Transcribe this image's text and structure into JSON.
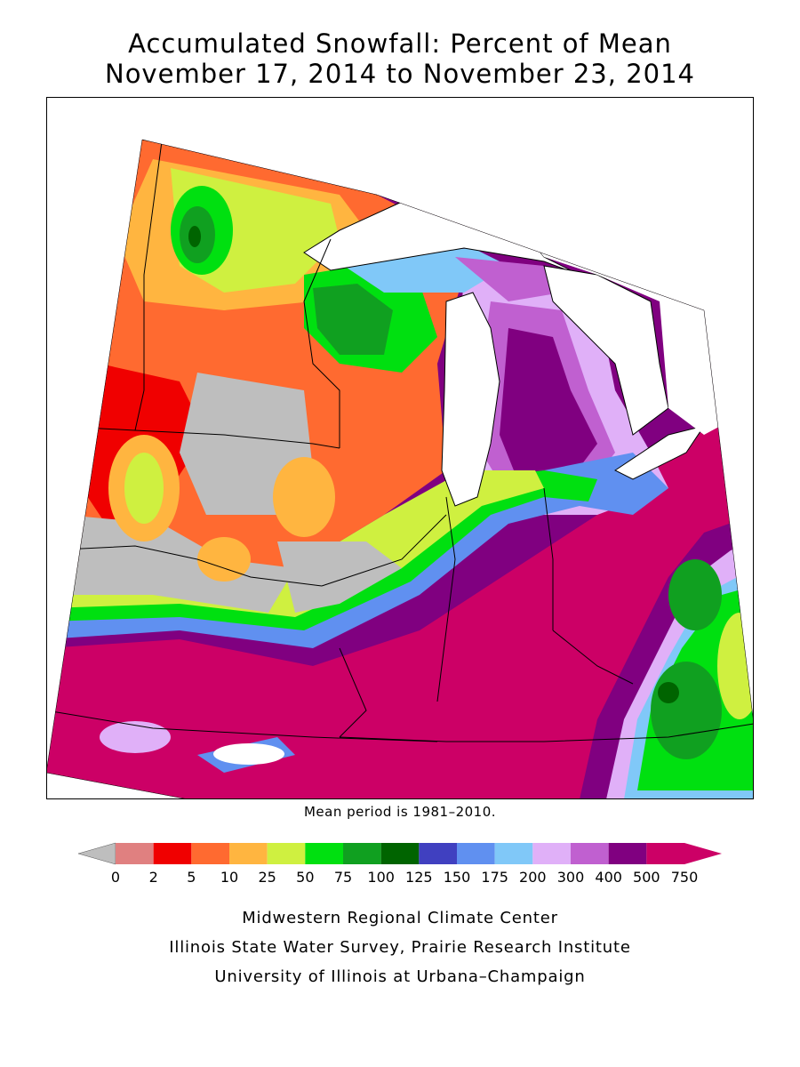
{
  "title_line1": "Accumulated Snowfall: Percent of Mean",
  "title_line2": "November 17, 2014 to November 23, 2014",
  "mean_period_note": "Mean period is 1981–2010.",
  "legend": {
    "tick_labels": [
      "0",
      "2",
      "5",
      "10",
      "25",
      "50",
      "75",
      "100",
      "125",
      "150",
      "175",
      "200",
      "300",
      "400",
      "500",
      "750"
    ],
    "colors": [
      "#bebebe",
      "#e08080",
      "#f00000",
      "#ff6a30",
      "#ffb540",
      "#cff040",
      "#00e010",
      "#10a020",
      "#006400",
      "#4040c0",
      "#6090f0",
      "#80c8f8",
      "#e0b0f8",
      "#c060d0",
      "#800080",
      "#cc0066"
    ],
    "below_min_color": "#bebebe",
    "above_max_color": "#cc0066"
  },
  "credits": [
    "Midwestern Regional Climate Center",
    "Illinois State Water Survey, Prairie Research Institute",
    "University of Illinois at Urbana–Champaign"
  ],
  "map": {
    "background_color": "#cc0066",
    "lake_color": "#ffffff",
    "border_color": "#000000"
  }
}
